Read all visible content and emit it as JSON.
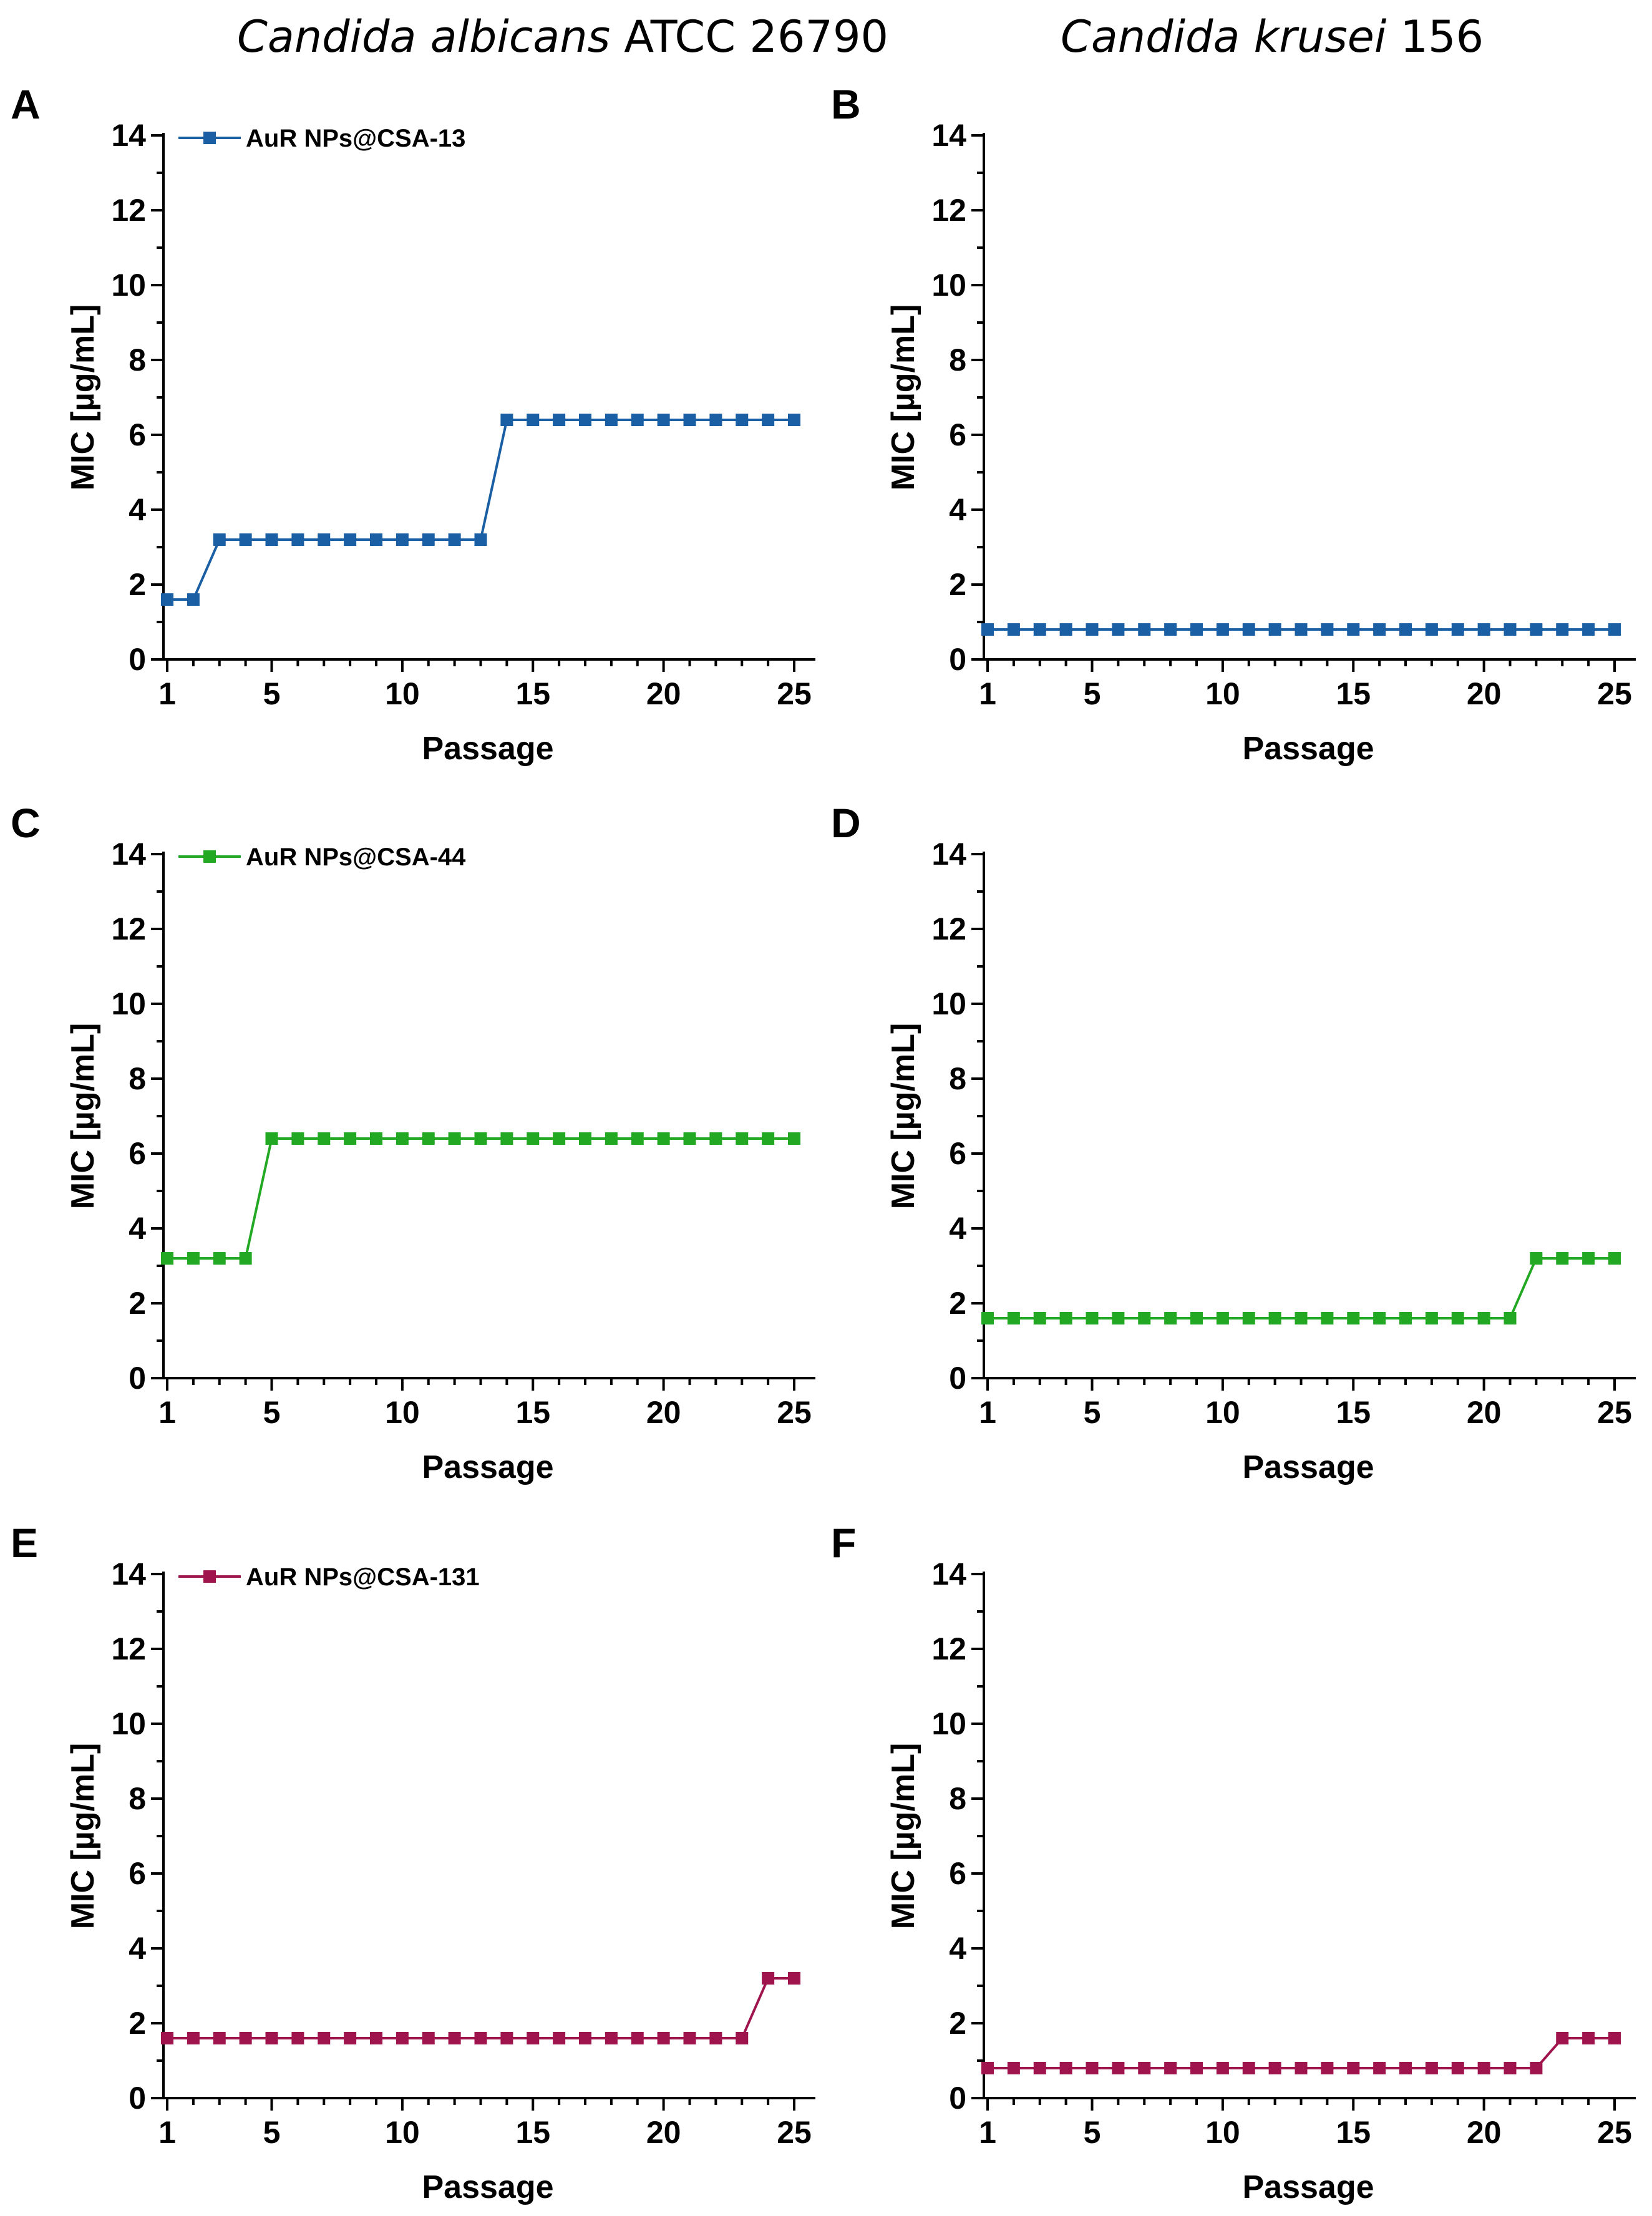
{
  "column_titles": [
    {
      "italic": "Candida albicans",
      "plain": " ATCC 26790"
    },
    {
      "italic": "Candida krusei",
      "plain": " 156"
    }
  ],
  "chart_data": [
    {
      "panel": "A",
      "type": "line",
      "column": 0,
      "row": 0,
      "legend": "AuR NPs@CSA-13",
      "color": "#1a5fa3",
      "xlabel": "Passage",
      "ylabel": "MIC [µg/mL]",
      "xlim": [
        1,
        25
      ],
      "ylim": [
        0,
        14
      ],
      "xticks": [
        1,
        5,
        10,
        15,
        20,
        25
      ],
      "yticks": [
        0,
        2,
        4,
        6,
        8,
        10,
        12,
        14
      ],
      "x": [
        1,
        2,
        3,
        4,
        5,
        6,
        7,
        8,
        9,
        10,
        11,
        12,
        13,
        14,
        15,
        16,
        17,
        18,
        19,
        20,
        21,
        22,
        23,
        24,
        25
      ],
      "y": [
        1.6,
        1.6,
        3.2,
        3.2,
        3.2,
        3.2,
        3.2,
        3.2,
        3.2,
        3.2,
        3.2,
        3.2,
        3.2,
        6.4,
        6.4,
        6.4,
        6.4,
        6.4,
        6.4,
        6.4,
        6.4,
        6.4,
        6.4,
        6.4,
        6.4
      ]
    },
    {
      "panel": "B",
      "type": "line",
      "column": 1,
      "row": 0,
      "legend": "",
      "color": "#1a5fa3",
      "xlabel": "Passage",
      "ylabel": "MIC [µg/mL]",
      "xlim": [
        1,
        25
      ],
      "ylim": [
        0,
        14
      ],
      "xticks": [
        1,
        5,
        10,
        15,
        20,
        25
      ],
      "yticks": [
        0,
        2,
        4,
        6,
        8,
        10,
        12,
        14
      ],
      "x": [
        1,
        2,
        3,
        4,
        5,
        6,
        7,
        8,
        9,
        10,
        11,
        12,
        13,
        14,
        15,
        16,
        17,
        18,
        19,
        20,
        21,
        22,
        23,
        24,
        25
      ],
      "y": [
        0.8,
        0.8,
        0.8,
        0.8,
        0.8,
        0.8,
        0.8,
        0.8,
        0.8,
        0.8,
        0.8,
        0.8,
        0.8,
        0.8,
        0.8,
        0.8,
        0.8,
        0.8,
        0.8,
        0.8,
        0.8,
        0.8,
        0.8,
        0.8,
        0.8
      ]
    },
    {
      "panel": "C",
      "type": "line",
      "column": 0,
      "row": 1,
      "legend": "AuR NPs@CSA-44",
      "color": "#22a822",
      "xlabel": "Passage",
      "ylabel": "MIC [µg/mL]",
      "xlim": [
        1,
        25
      ],
      "ylim": [
        0,
        14
      ],
      "xticks": [
        1,
        5,
        10,
        15,
        20,
        25
      ],
      "yticks": [
        0,
        2,
        4,
        6,
        8,
        10,
        12,
        14
      ],
      "x": [
        1,
        2,
        3,
        4,
        5,
        6,
        7,
        8,
        9,
        10,
        11,
        12,
        13,
        14,
        15,
        16,
        17,
        18,
        19,
        20,
        21,
        22,
        23,
        24,
        25
      ],
      "y": [
        3.2,
        3.2,
        3.2,
        3.2,
        6.4,
        6.4,
        6.4,
        6.4,
        6.4,
        6.4,
        6.4,
        6.4,
        6.4,
        6.4,
        6.4,
        6.4,
        6.4,
        6.4,
        6.4,
        6.4,
        6.4,
        6.4,
        6.4,
        6.4,
        6.4
      ]
    },
    {
      "panel": "D",
      "type": "line",
      "column": 1,
      "row": 1,
      "legend": "",
      "color": "#22a822",
      "xlabel": "Passage",
      "ylabel": "MIC [µg/mL]",
      "xlim": [
        1,
        25
      ],
      "ylim": [
        0,
        14
      ],
      "xticks": [
        1,
        5,
        10,
        15,
        20,
        25
      ],
      "yticks": [
        0,
        2,
        4,
        6,
        8,
        10,
        12,
        14
      ],
      "x": [
        1,
        2,
        3,
        4,
        5,
        6,
        7,
        8,
        9,
        10,
        11,
        12,
        13,
        14,
        15,
        16,
        17,
        18,
        19,
        20,
        21,
        22,
        23,
        24,
        25
      ],
      "y": [
        1.6,
        1.6,
        1.6,
        1.6,
        1.6,
        1.6,
        1.6,
        1.6,
        1.6,
        1.6,
        1.6,
        1.6,
        1.6,
        1.6,
        1.6,
        1.6,
        1.6,
        1.6,
        1.6,
        1.6,
        1.6,
        3.2,
        3.2,
        3.2,
        3.2
      ]
    },
    {
      "panel": "E",
      "type": "line",
      "column": 0,
      "row": 2,
      "legend": "AuR NPs@CSA-131",
      "color": "#a0144e",
      "xlabel": "Passage",
      "ylabel": "MIC [µg/mL]",
      "xlim": [
        1,
        25
      ],
      "ylim": [
        0,
        14
      ],
      "xticks": [
        1,
        5,
        10,
        15,
        20,
        25
      ],
      "yticks": [
        0,
        2,
        4,
        6,
        8,
        10,
        12,
        14
      ],
      "x": [
        1,
        2,
        3,
        4,
        5,
        6,
        7,
        8,
        9,
        10,
        11,
        12,
        13,
        14,
        15,
        16,
        17,
        18,
        19,
        20,
        21,
        22,
        23,
        24,
        25
      ],
      "y": [
        1.6,
        1.6,
        1.6,
        1.6,
        1.6,
        1.6,
        1.6,
        1.6,
        1.6,
        1.6,
        1.6,
        1.6,
        1.6,
        1.6,
        1.6,
        1.6,
        1.6,
        1.6,
        1.6,
        1.6,
        1.6,
        1.6,
        1.6,
        3.2,
        3.2
      ]
    },
    {
      "panel": "F",
      "type": "line",
      "column": 1,
      "row": 2,
      "legend": "",
      "color": "#a0144e",
      "xlabel": "Passage",
      "ylabel": "MIC [µg/mL]",
      "xlim": [
        1,
        25
      ],
      "ylim": [
        0,
        14
      ],
      "xticks": [
        1,
        5,
        10,
        15,
        20,
        25
      ],
      "yticks": [
        0,
        2,
        4,
        6,
        8,
        10,
        12,
        14
      ],
      "x": [
        1,
        2,
        3,
        4,
        5,
        6,
        7,
        8,
        9,
        10,
        11,
        12,
        13,
        14,
        15,
        16,
        17,
        18,
        19,
        20,
        21,
        22,
        23,
        24,
        25
      ],
      "y": [
        0.8,
        0.8,
        0.8,
        0.8,
        0.8,
        0.8,
        0.8,
        0.8,
        0.8,
        0.8,
        0.8,
        0.8,
        0.8,
        0.8,
        0.8,
        0.8,
        0.8,
        0.8,
        0.8,
        0.8,
        0.8,
        0.8,
        1.6,
        1.6,
        1.6
      ]
    }
  ]
}
